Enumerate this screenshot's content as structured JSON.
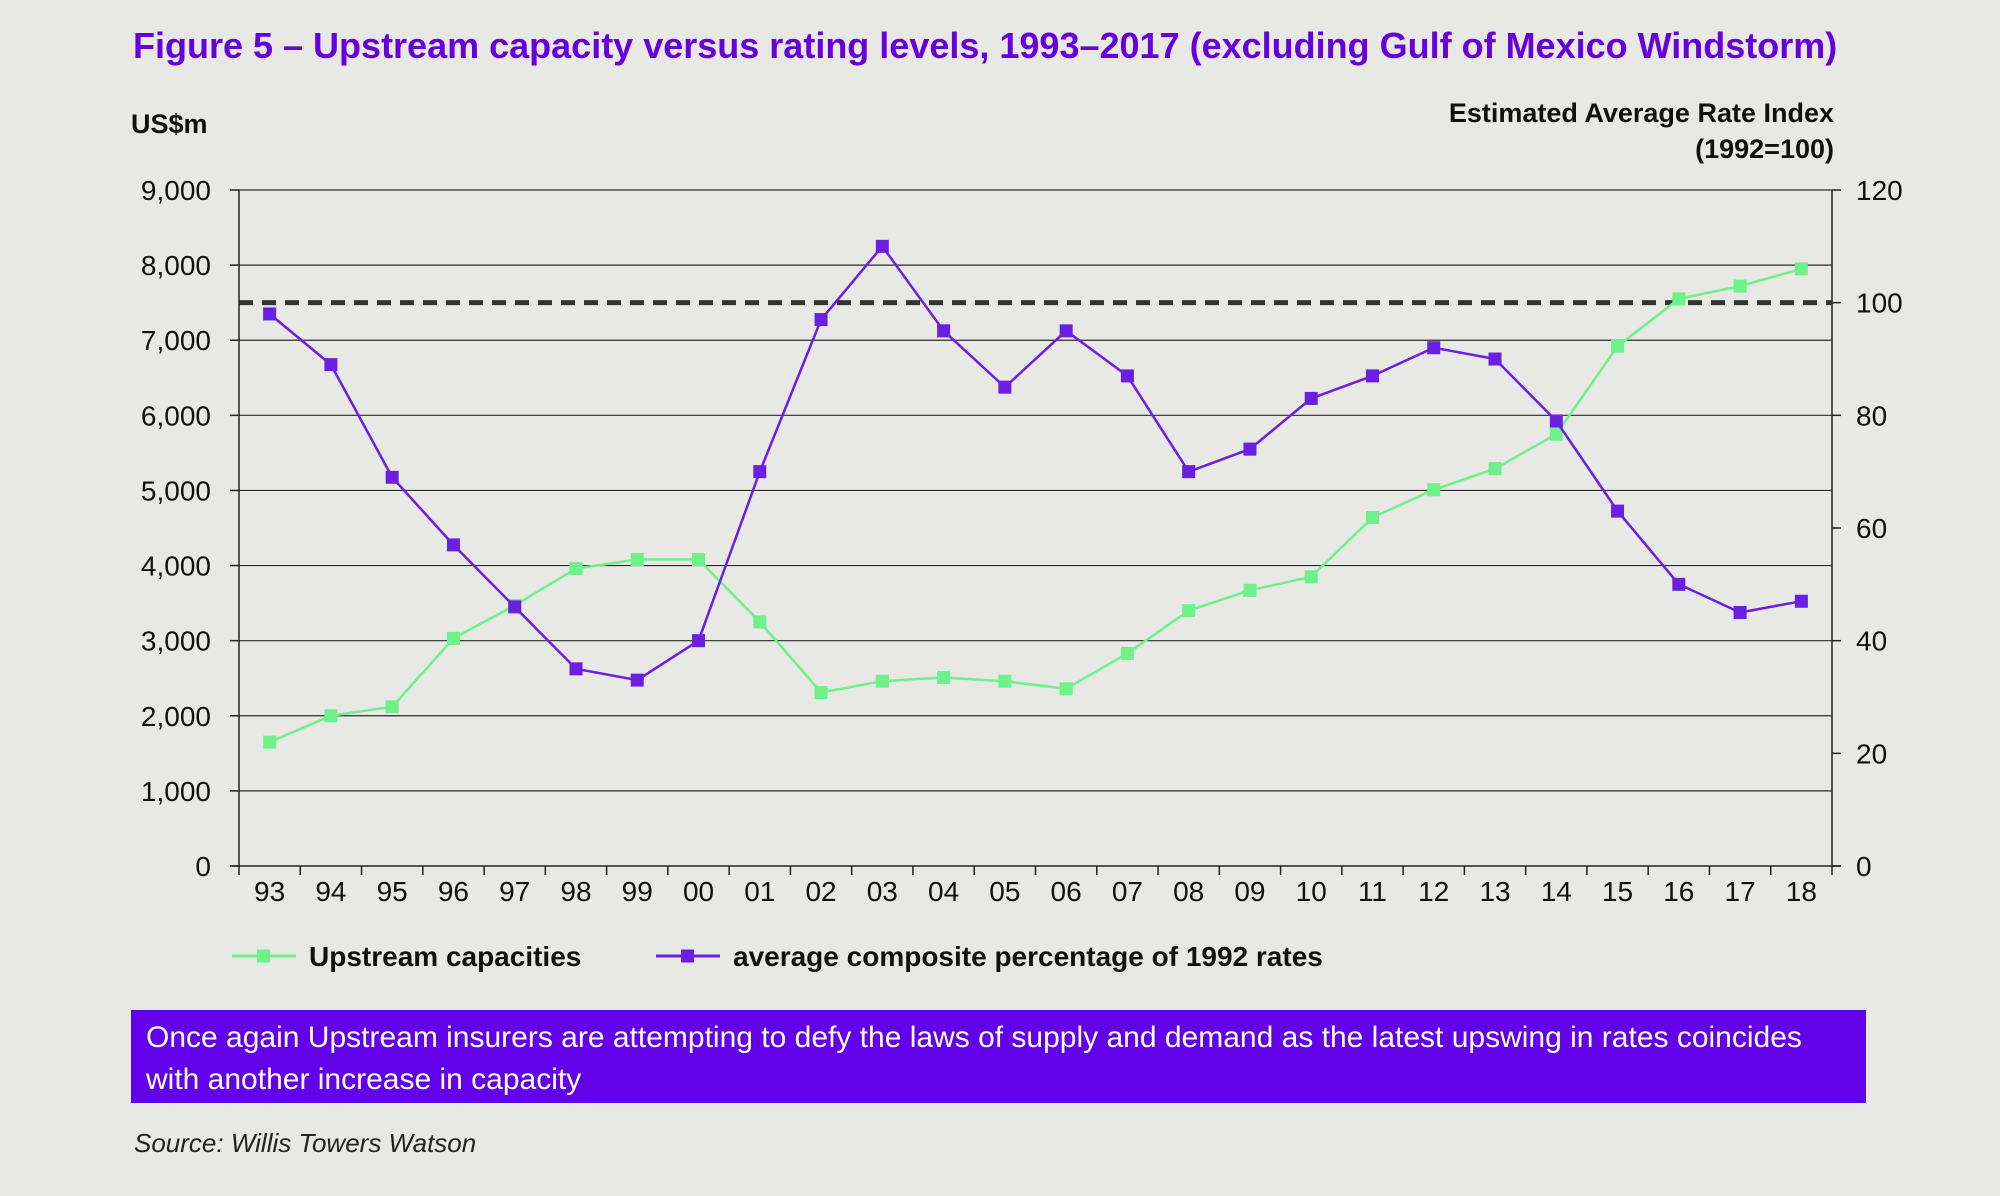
{
  "colors": {
    "background": "#e8e8e5",
    "title": "#6600dd",
    "capacity_series": "#6ef08a",
    "rate_series": "#6b1fe0",
    "callout_bg": "#6200ea",
    "reference_line": "#333333"
  },
  "chart_data": {
    "type": "line",
    "title": "Figure 5 – Upstream capacity versus rating levels, 1993–2017 (excluding Gulf of Mexico Windstorm)",
    "ylabel_left": "US$m",
    "ylabel_right_line1": "Estimated Average Rate Index",
    "ylabel_right_line2": "(1992=100)",
    "ylim_left": [
      0,
      9000
    ],
    "ylim_right": [
      0,
      120
    ],
    "yticks_left": [
      "0",
      "1,000",
      "2,000",
      "3,000",
      "4,000",
      "5,000",
      "6,000",
      "7,000",
      "8,000",
      "9,000"
    ],
    "yticks_right": [
      "0",
      "20",
      "40",
      "60",
      "80",
      "100",
      "120"
    ],
    "grid": "horizontal",
    "reference_line_right": 100,
    "categories": [
      "93",
      "94",
      "95",
      "96",
      "97",
      "98",
      "99",
      "00",
      "01",
      "02",
      "03",
      "04",
      "05",
      "06",
      "07",
      "08",
      "09",
      "10",
      "11",
      "12",
      "13",
      "14",
      "15",
      "16",
      "17",
      "18"
    ],
    "legend_position": "bottom",
    "series": [
      {
        "name": "Upstream  capacities",
        "axis": "left",
        "values": [
          1650,
          2000,
          2120,
          3030,
          3470,
          3960,
          4080,
          4080,
          3250,
          2310,
          2460,
          2510,
          2460,
          2360,
          2830,
          3400,
          3670,
          3850,
          4640,
          5010,
          5290,
          5750,
          6920,
          7550,
          7720,
          7950
        ]
      },
      {
        "name": "average composite percentage of 1992 rates",
        "axis": "right",
        "values": [
          98,
          89,
          69,
          57,
          46,
          35,
          33,
          40,
          70,
          97,
          110,
          95,
          85,
          95,
          87,
          70,
          74,
          83,
          87,
          92,
          90,
          79,
          63,
          50,
          45,
          47
        ]
      }
    ]
  },
  "callout": {
    "text": "Once again Upstream insurers are attempting to defy the laws of supply and demand as the latest upswing in rates coincides with another increase in capacity"
  },
  "source": {
    "text": "Source: Willis Towers Watson"
  }
}
